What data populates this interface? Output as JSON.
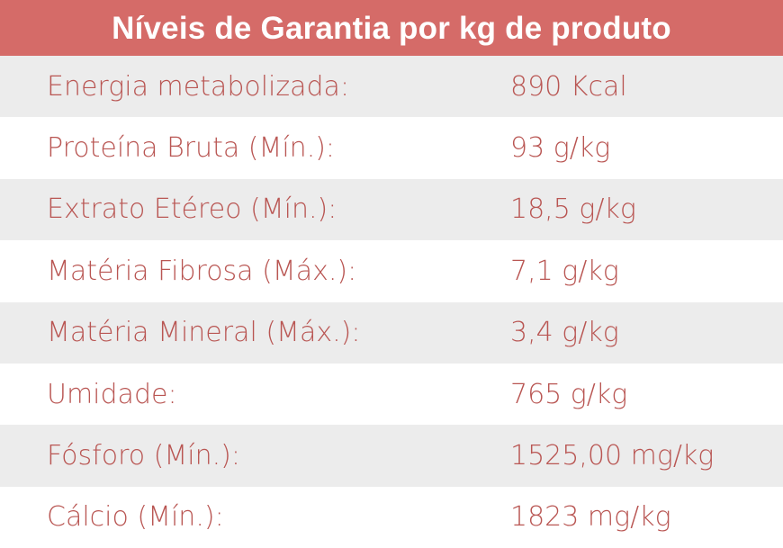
{
  "header": {
    "title": "Níveis de Garantia por kg de produto"
  },
  "colors": {
    "header_bg": "#d56b68",
    "text": "#b95653",
    "row_shade": "#ececec"
  },
  "rows": [
    {
      "label": "Energia metabolizada:",
      "value": "890 Kcal"
    },
    {
      "label": "Proteína Bruta (Mín.):",
      "value": "93 g/kg"
    },
    {
      "label": "Extrato Etéreo (Mín.):",
      "value": "18,5 g/kg"
    },
    {
      "label": "Matéria Fibrosa (Máx.):",
      "value": "7,1 g/kg"
    },
    {
      "label": "Matéria Mineral (Máx.):",
      "value": "3,4 g/kg"
    },
    {
      "label": "Umidade:",
      "value": "765 g/kg"
    },
    {
      "label": "Fósforo (Mín.):",
      "value": "1525,00 mg/kg"
    },
    {
      "label": "Cálcio (Mín.):",
      "value": "1823 mg/kg"
    }
  ]
}
